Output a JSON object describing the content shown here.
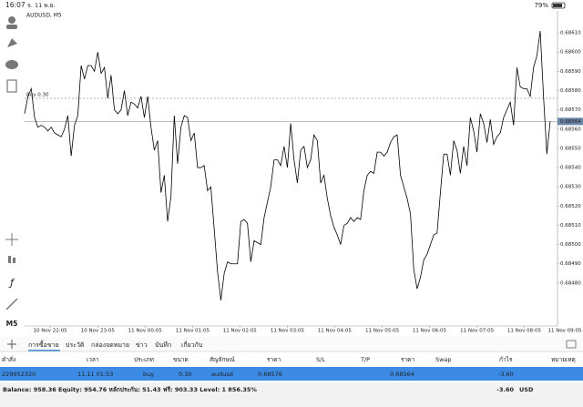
{
  "status_bar": {
    "time": "16:07",
    "date": "จ. 11 พ.ย.",
    "battery": "79%"
  },
  "toolbar": {
    "timeframe": "M5"
  },
  "chart_data": {
    "type": "line",
    "title": "AUDUSD, M5",
    "color": "#000000",
    "values": [
      0.68568,
      0.68577,
      0.68581,
      0.68566,
      0.68561,
      0.68562,
      0.68561,
      0.68559,
      0.68561,
      0.68558,
      0.68557,
      0.68556,
      0.6856,
      0.68567,
      0.68546,
      0.68562,
      0.68567,
      0.68593,
      0.68586,
      0.68593,
      0.68593,
      0.6859,
      0.686,
      0.68589,
      0.68592,
      0.68576,
      0.68588,
      0.6857,
      0.68568,
      0.6857,
      0.6858,
      0.68567,
      0.68574,
      0.68573,
      0.68571,
      0.68577,
      0.68566,
      0.68577,
      0.68561,
      0.68549,
      0.68554,
      0.68527,
      0.68536,
      0.68512,
      0.68525,
      0.68567,
      0.68542,
      0.68561,
      0.68567,
      0.68566,
      0.68554,
      0.68558,
      0.6854,
      0.6854,
      0.68541,
      0.68528,
      0.6853,
      0.68508,
      0.68486,
      0.68471,
      0.68485,
      0.68491,
      0.6849,
      0.6849,
      0.6849,
      0.68512,
      0.68513,
      0.68511,
      0.68491,
      0.68502,
      0.68501,
      0.685,
      0.68514,
      0.68522,
      0.6853,
      0.68544,
      0.68544,
      0.68541,
      0.68551,
      0.6854,
      0.68563,
      0.68544,
      0.68532,
      0.68549,
      0.68551,
      0.6854,
      0.68544,
      0.68557,
      0.68554,
      0.68532,
      0.68536,
      0.68524,
      0.68515,
      0.68509,
      0.68505,
      0.685,
      0.6851,
      0.68511,
      0.68514,
      0.68512,
      0.68514,
      0.68513,
      0.68528,
      0.68536,
      0.68538,
      0.68537,
      0.68548,
      0.68548,
      0.68546,
      0.68548,
      0.68553,
      0.68556,
      0.68557,
      0.68536,
      0.6853,
      0.68524,
      0.68516,
      0.68487,
      0.68477,
      0.68483,
      0.68492,
      0.68495,
      0.685,
      0.68505,
      0.68506,
      0.68527,
      0.68547,
      0.68547,
      0.68536,
      0.68554,
      0.68549,
      0.68537,
      0.68551,
      0.68541,
      0.68566,
      0.68559,
      0.68548,
      0.68568,
      0.68563,
      0.68553,
      0.68565,
      0.68552,
      0.68556,
      0.68558,
      0.68566,
      0.6857,
      0.68574,
      0.68562,
      0.68592,
      0.68582,
      0.68581,
      0.68581,
      0.68577,
      0.68592,
      0.68598,
      0.68611,
      0.68577,
      0.68547,
      0.68564
    ],
    "xlim": [
      0,
      160.2
    ],
    "xticks": [
      {
        "value": 7.7,
        "label": "10 Nov 22:05"
      },
      {
        "value": 22,
        "label": "10 Nov 23:05"
      },
      {
        "value": 36.2,
        "label": "11 Nov 00:05"
      },
      {
        "value": 50.5,
        "label": "11 Nov 01:05"
      },
      {
        "value": 64.7,
        "label": "11 Nov 02:05"
      },
      {
        "value": 79,
        "label": "11 Nov 03:05"
      },
      {
        "value": 93.2,
        "label": "11 Nov 04:05"
      },
      {
        "value": 107.5,
        "label": "11 Nov 05:05"
      },
      {
        "value": 121.7,
        "label": "11 Nov 06:05"
      },
      {
        "value": 136,
        "label": "11 Nov 07:05"
      },
      {
        "value": 150.2,
        "label": "11 Nov 08:05"
      },
      {
        "value": 164.5,
        "label": "11 Nov 09:05"
      }
    ],
    "ylim": [
      0.684577,
      0.686214
    ],
    "yticks": [
      {
        "value": 0.6861,
        "label": "0.68610"
      },
      {
        "value": 0.686,
        "label": "0.68600"
      },
      {
        "value": 0.6859,
        "label": "0.68590"
      },
      {
        "value": 0.6858,
        "label": "0.68580"
      },
      {
        "value": 0.6857,
        "label": "0.68570"
      },
      {
        "value": 0.6856,
        "label": "0.68560"
      },
      {
        "value": 0.6855,
        "label": "0.68550"
      },
      {
        "value": 0.6854,
        "label": "0.68540"
      },
      {
        "value": 0.6853,
        "label": "0.68530"
      },
      {
        "value": 0.6852,
        "label": "0.68520"
      },
      {
        "value": 0.6851,
        "label": "0.68510"
      },
      {
        "value": 0.685,
        "label": "0.68500"
      },
      {
        "value": 0.6849,
        "label": "0.68490"
      },
      {
        "value": 0.6848,
        "label": "0.68480"
      }
    ],
    "order_line": {
      "label": "Buy 0.30",
      "value": 0.68576
    },
    "current_price": 0.68564
  },
  "tabs": [
    "การซื้อขาย",
    "ประวัติ",
    "กล่องจดหมาย",
    "ข่าว",
    "บันทึก",
    "เกี่ยวกับ"
  ],
  "table": {
    "headers": [
      "คำสั่ง",
      "เวลา",
      "ประเภท",
      "ขนาด",
      "สัญลักษณ์",
      "ราคา",
      "S/L",
      "T/P",
      "ราคา",
      "Swap",
      "กำไร",
      "หมายเหตุ"
    ],
    "row": {
      "order": "229952320",
      "time": "11.11 01:53",
      "type": "buy",
      "size": "0.30",
      "symbol": "audusd",
      "open_price": "0.68576",
      "price": "0.68564",
      "profit": "-3.60"
    }
  },
  "footer": {
    "summary": "Balance: 958.36 Equity: 954.76 หลักประกัน: 51.43 ฟรี: 903.33 Level: 1 856.35%",
    "profit": "-3.60",
    "currency": "USD"
  }
}
